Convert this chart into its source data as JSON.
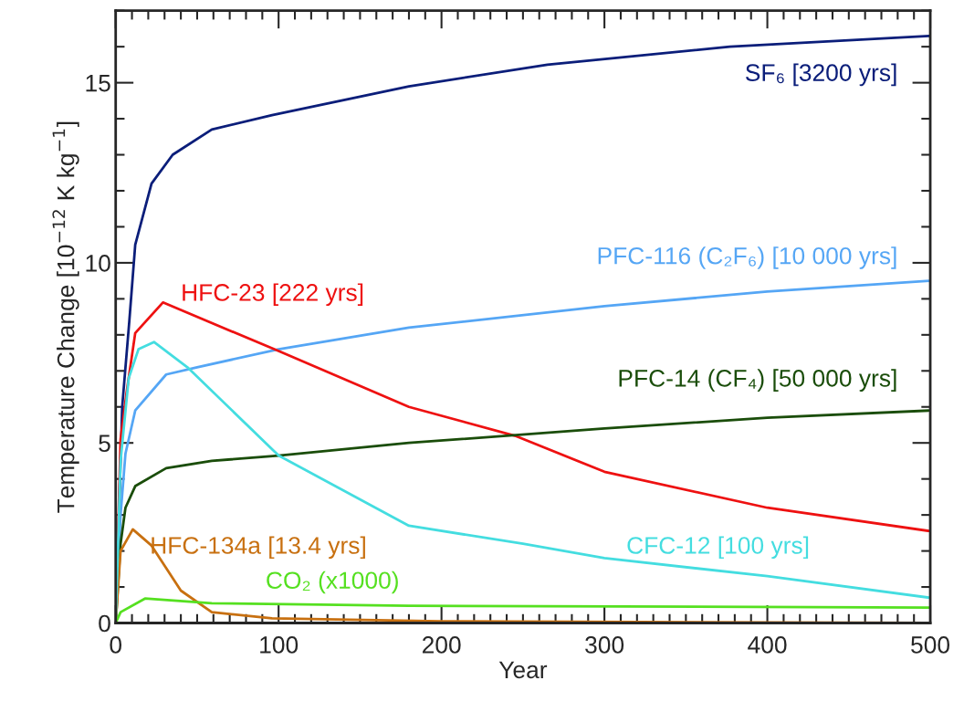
{
  "chart_data": {
    "type": "line",
    "xlabel": "Year",
    "ylabel": "Temperature Change [10$^{−12}$ K kg$^{−1}$]",
    "xlim": [
      0,
      500
    ],
    "ylim": [
      0,
      17
    ],
    "xticks": [
      0,
      100,
      200,
      300,
      400,
      500
    ],
    "yticks": [
      0,
      5,
      10,
      15
    ],
    "grid": false,
    "legend": false,
    "marker": "none",
    "line_style": "solid",
    "series": [
      {
        "name": "SF₆ [3200 yrs]",
        "color": "#0b1e7a",
        "x": [
          0,
          2,
          4,
          8.4,
          12,
          22,
          35,
          59,
          96,
          180,
          265,
          377,
          500
        ],
        "values": [
          0,
          3,
          6,
          8.4,
          10.5,
          12.2,
          13.0,
          13.7,
          14.1,
          14.9,
          15.5,
          16.0,
          16.3
        ]
      },
      {
        "name": "PFC-116 (C₂F₆) [10 000 yrs]",
        "color": "#55a6f5",
        "x": [
          0,
          3,
          6,
          12,
          31,
          50,
          100,
          180,
          300,
          400,
          500
        ],
        "values": [
          0,
          3,
          4.7,
          5.9,
          6.9,
          7.1,
          7.6,
          8.2,
          8.8,
          9.2,
          9.5
        ]
      },
      {
        "name": "HFC-23 [222 yrs]",
        "color": "#ee1111",
        "x": [
          0,
          3,
          6.7,
          12,
          29,
          100,
          180,
          245,
          300,
          400,
          500
        ],
        "values": [
          0,
          5.1,
          6.4,
          8.05,
          8.9,
          7.55,
          6.0,
          5.2,
          4.2,
          3.2,
          2.55
        ]
      },
      {
        "name": "PFC-14 (CF₄) [50 000 yrs]",
        "color": "#1a4d0a",
        "x": [
          0,
          3,
          6,
          12,
          31,
          59,
          100,
          180,
          300,
          400,
          500
        ],
        "values": [
          0,
          2.2,
          3.2,
          3.8,
          4.3,
          4.5,
          4.65,
          5.0,
          5.4,
          5.7,
          5.9
        ]
      },
      {
        "name": "HFC-134a [13.4 yrs]",
        "color": "#c87010",
        "x": [
          0,
          3,
          10.5,
          22,
          40,
          59,
          96,
          200,
          500
        ],
        "values": [
          0,
          2.0,
          2.6,
          2.15,
          0.9,
          0.3,
          0.13,
          0.05,
          0
        ]
      },
      {
        "name": "CFC-12 [100 yrs]",
        "color": "#44dde0",
        "x": [
          0,
          3,
          8,
          14,
          23.5,
          44,
          100,
          180,
          250,
          300,
          400,
          500
        ],
        "values": [
          0,
          4.5,
          6.8,
          7.6,
          7.8,
          7.1,
          4.65,
          2.7,
          2.2,
          1.8,
          1.3,
          0.7
        ]
      },
      {
        "name": "CO₂ (x1000)",
        "color": "#55e020",
        "x": [
          0,
          3,
          18,
          59,
          180,
          500
        ],
        "values": [
          0,
          0.3,
          0.68,
          0.55,
          0.48,
          0.43
        ]
      }
    ]
  }
}
